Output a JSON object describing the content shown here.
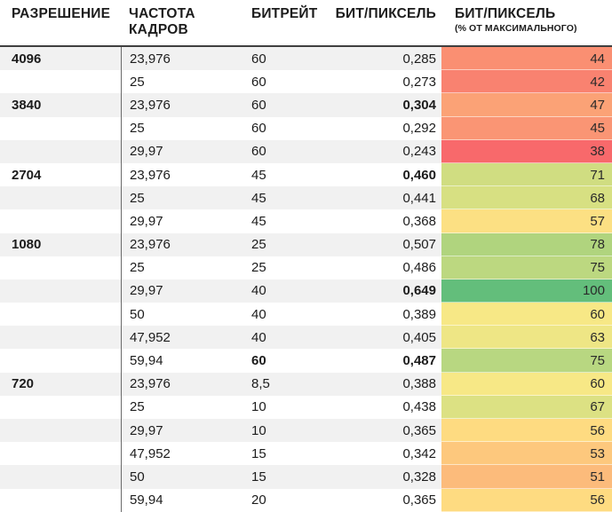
{
  "header": {
    "resolution": "РАЗРЕШЕНИЕ",
    "framerate": "ЧАСТОТА КАДРОВ",
    "bitrate": "БИТРЕЙТ",
    "bits_per_pixel": "БИТ/ПИКСЕЛЬ",
    "bits_per_pixel_pct": "БИТ/ПИКСЕЛЬ",
    "bits_per_pixel_pct_sub": "(% ОТ МАКСИМАЛЬНОГО)"
  },
  "chart_data": {
    "type": "table",
    "title": "",
    "columns": [
      "РАЗРЕШЕНИЕ",
      "ЧАСТОТА КАДРОВ",
      "БИТРЕЙТ",
      "БИТ/ПИКСЕЛЬ",
      "БИТ/ПИКСЕЛЬ (% ОТ МАКСИМАЛЬНОГО)"
    ],
    "heatmap_scale": {
      "column": "БИТ/ПИКСЕЛЬ (% ОТ МАКСИМАЛЬНОГО)",
      "min_value": 38,
      "max_value": 100,
      "min_color": "#F8696B",
      "mid_color": "#FFEB84",
      "max_color": "#63BE7B"
    },
    "rows": [
      {
        "resolution": "4096",
        "framerate": "23,976",
        "bitrate": "60",
        "bits_per_pixel": "0,285",
        "pct_of_max": "44",
        "pct_color": "#FA8F72"
      },
      {
        "resolution": "",
        "framerate": "25",
        "bitrate": "60",
        "bits_per_pixel": "0,273",
        "pct_of_max": "42",
        "pct_color": "#F98270"
      },
      {
        "resolution": "3840",
        "framerate": "23,976",
        "bitrate": "60",
        "bits_per_pixel": "0,304",
        "pct_of_max": "47",
        "pct_color": "#FBA276"
      },
      {
        "resolution": "",
        "framerate": "25",
        "bitrate": "60",
        "bits_per_pixel": "0,292",
        "pct_of_max": "45",
        "pct_color": "#FA9574"
      },
      {
        "resolution": "",
        "framerate": "29,97",
        "bitrate": "60",
        "bits_per_pixel": "0,243",
        "pct_of_max": "38",
        "pct_color": "#F8696B"
      },
      {
        "resolution": "2704",
        "framerate": "23,976",
        "bitrate": "45",
        "bits_per_pixel": "0,460",
        "pct_of_max": "71",
        "pct_color": "#D0DD81"
      },
      {
        "resolution": "",
        "framerate": "25",
        "bitrate": "45",
        "bits_per_pixel": "0,441",
        "pct_of_max": "68",
        "pct_color": "#D7E082"
      },
      {
        "resolution": "",
        "framerate": "29,97",
        "bitrate": "45",
        "bits_per_pixel": "0,368",
        "pct_of_max": "57",
        "pct_color": "#FCE083"
      },
      {
        "resolution": "1080",
        "framerate": "23,976",
        "bitrate": "25",
        "bits_per_pixel": "0,507",
        "pct_of_max": "78",
        "pct_color": "#B0D47E"
      },
      {
        "resolution": "",
        "framerate": "25",
        "bitrate": "25",
        "bits_per_pixel": "0,486",
        "pct_of_max": "75",
        "pct_color": "#BCD880"
      },
      {
        "resolution": "",
        "framerate": "29,97",
        "bitrate": "40",
        "bits_per_pixel": "0,649",
        "pct_of_max": "100",
        "pct_color": "#63BE7B"
      },
      {
        "resolution": "",
        "framerate": "50",
        "bitrate": "40",
        "bits_per_pixel": "0,389",
        "pct_of_max": "60",
        "pct_color": "#F7E886"
      },
      {
        "resolution": "",
        "framerate": "47,952",
        "bitrate": "40",
        "bits_per_pixel": "0,405",
        "pct_of_max": "63",
        "pct_color": "#EEE685"
      },
      {
        "resolution": "",
        "framerate": "59,94",
        "bitrate": "60",
        "bits_per_pixel": "0,487",
        "pct_of_max": "75",
        "pct_color": "#B8D781"
      },
      {
        "resolution": "720",
        "framerate": "23,976",
        "bitrate": "8,5",
        "bits_per_pixel": "0,388",
        "pct_of_max": "60",
        "pct_color": "#F7E886"
      },
      {
        "resolution": "",
        "framerate": "25",
        "bitrate": "10",
        "bits_per_pixel": "0,438",
        "pct_of_max": "67",
        "pct_color": "#DCE183"
      },
      {
        "resolution": "",
        "framerate": "29,97",
        "bitrate": "10",
        "bits_per_pixel": "0,365",
        "pct_of_max": "56",
        "pct_color": "#FEDB81"
      },
      {
        "resolution": "",
        "framerate": "47,952",
        "bitrate": "15",
        "bits_per_pixel": "0,342",
        "pct_of_max": "53",
        "pct_color": "#FDC87D"
      },
      {
        "resolution": "",
        "framerate": "50",
        "bitrate": "15",
        "bits_per_pixel": "0,328",
        "pct_of_max": "51",
        "pct_color": "#FCBB7B"
      },
      {
        "resolution": "",
        "framerate": "59,94",
        "bitrate": "20",
        "bits_per_pixel": "0,365",
        "pct_of_max": "56",
        "pct_color": "#FEDB81"
      }
    ]
  }
}
